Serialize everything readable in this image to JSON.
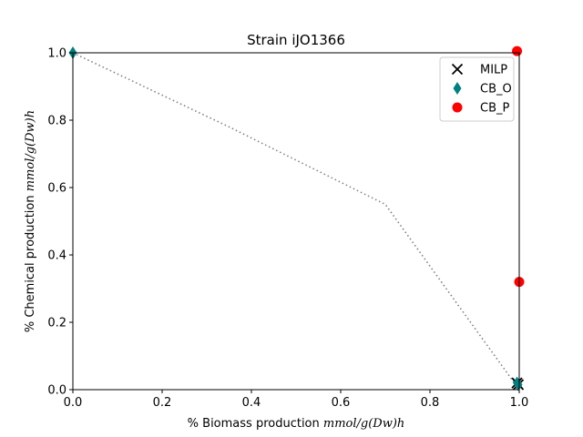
{
  "chart_data": {
    "type": "scatter",
    "title": "Strain iJO1366",
    "xlabel_prefix": "% Biomass production ",
    "xlabel_unit": "mmol/g(Dw)h",
    "ylabel_prefix": "% Chemical production ",
    "ylabel_unit": "mmol/g(Dw)h",
    "xlim": [
      0,
      1.0
    ],
    "ylim": [
      0,
      1.0
    ],
    "xticks": [
      "0.0",
      "0.2",
      "0.4",
      "0.6",
      "0.8",
      "1.0"
    ],
    "yticks": [
      "0.0",
      "0.2",
      "0.4",
      "0.6",
      "0.8",
      "1.0"
    ],
    "grid": false,
    "legend_position": "top-right",
    "frontier": {
      "style": "dotted",
      "color": "#808080",
      "points": [
        [
          0.0,
          1.0
        ],
        [
          0.35,
          0.78
        ],
        [
          0.7,
          0.55
        ],
        [
          1.0,
          0.0
        ]
      ]
    },
    "series": [
      {
        "name": "MILP",
        "marker": "x",
        "color": "#000000",
        "points": [
          [
            0.995,
            0.02
          ],
          [
            0.998,
            0.015
          ]
        ]
      },
      {
        "name": "CB_O",
        "marker": "diamond",
        "color": "#008080",
        "points": [
          [
            0.0,
            1.0
          ],
          [
            0.995,
            0.02
          ],
          [
            0.998,
            0.015
          ]
        ]
      },
      {
        "name": "CB_P",
        "marker": "circle",
        "color": "#ff0000",
        "points": [
          [
            0.995,
            1.005
          ],
          [
            1.0,
            0.32
          ]
        ]
      }
    ]
  }
}
